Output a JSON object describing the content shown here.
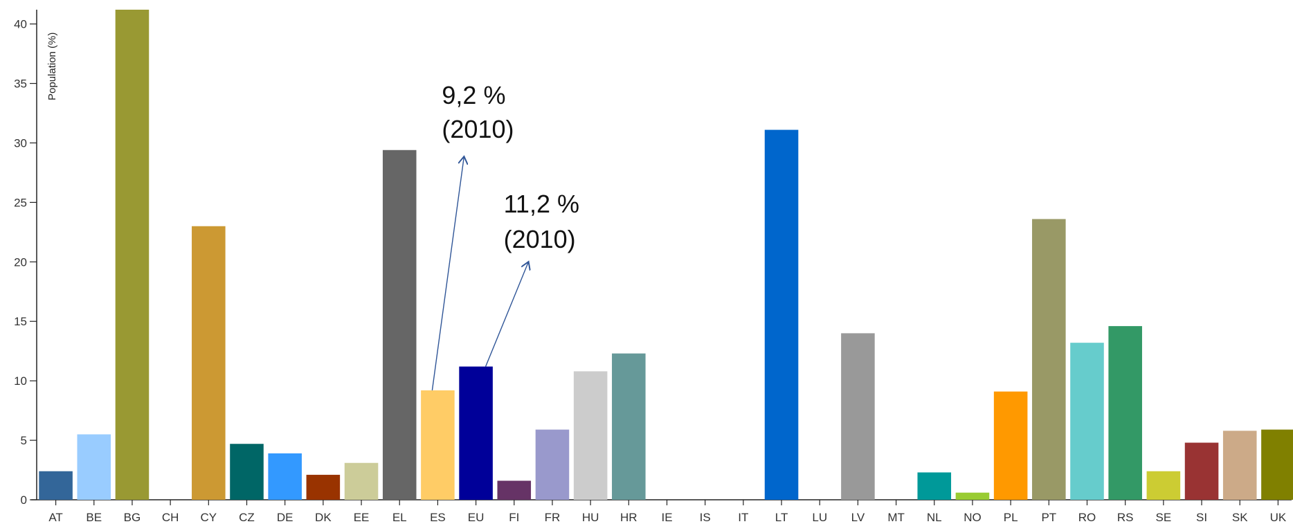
{
  "chart_data": {
    "type": "bar",
    "ylabel": "Population (%)",
    "ylim": [
      0,
      41.2
    ],
    "yticks": [
      0,
      5,
      10,
      15,
      20,
      25,
      30,
      35,
      40
    ],
    "categories": [
      "AT",
      "BE",
      "BG",
      "CH",
      "CY",
      "CZ",
      "DE",
      "DK",
      "EE",
      "EL",
      "ES",
      "EU",
      "FI",
      "FR",
      "HU",
      "HR",
      "IE",
      "IS",
      "IT",
      "LT",
      "LU",
      "LV",
      "MT",
      "NL",
      "NO",
      "PL",
      "PT",
      "RO",
      "RS",
      "SE",
      "SI",
      "SK",
      "UK"
    ],
    "values": [
      2.4,
      5.5,
      41.2,
      null,
      23.0,
      4.7,
      3.9,
      2.1,
      3.1,
      29.4,
      9.2,
      11.2,
      1.6,
      5.9,
      10.8,
      12.3,
      null,
      null,
      null,
      31.1,
      null,
      14.0,
      null,
      2.3,
      0.6,
      9.1,
      23.6,
      13.2,
      14.6,
      2.4,
      4.8,
      5.8,
      5.9
    ],
    "colors": [
      "#336699",
      "#99ccff",
      "#999933",
      "#ffffff",
      "#cc9933",
      "#006666",
      "#3399ff",
      "#993300",
      "#cccc99",
      "#666666",
      "#ffcc66",
      "#000099",
      "#663366",
      "#9999cc",
      "#cccccc",
      "#669999",
      "#ffffff",
      "#ffffff",
      "#ffffff",
      "#0066cc",
      "#ffffff",
      "#999999",
      "#ffffff",
      "#009999",
      "#99cc33",
      "#ff9900",
      "#999966",
      "#66cccc",
      "#339966",
      "#cccc33",
      "#993333",
      "#ccaa88",
      "#808000"
    ],
    "annotations": [
      {
        "category": "ES",
        "line1": "9,2 %",
        "line2": "(2010)"
      },
      {
        "category": "EU",
        "line1": "11,2 %",
        "line2": "(2010)"
      }
    ]
  }
}
